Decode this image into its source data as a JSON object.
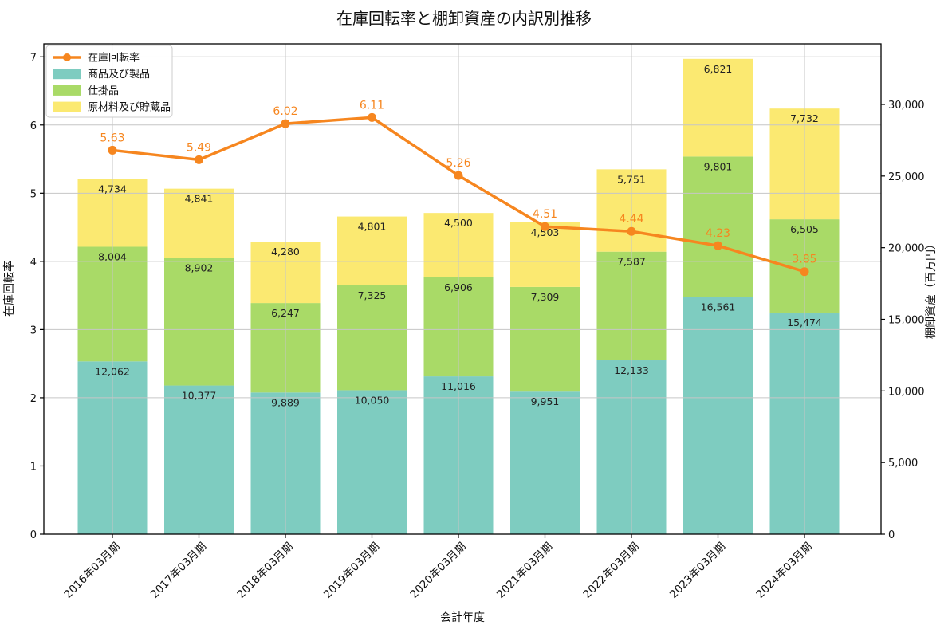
{
  "chart_data": {
    "type": "bar+line",
    "title": "在庫回転率と棚卸資産の内訳別推移",
    "xlabel": "会計年度",
    "ylabel_left": "在庫回転率",
    "ylabel_right": "棚卸資産（百万円）",
    "categories": [
      "2016年03月期",
      "2017年03月期",
      "2018年03月期",
      "2019年03月期",
      "2020年03月期",
      "2021年03月期",
      "2022年03月期",
      "2023年03月期",
      "2024年03月期"
    ],
    "bar_series": [
      {
        "name": "商品及び製品",
        "color": "#7eccc0",
        "values": [
          12062,
          10377,
          9889,
          10050,
          11016,
          9951,
          12133,
          16561,
          15474
        ]
      },
      {
        "name": "仕掛品",
        "color": "#a9da67",
        "values": [
          8004,
          8902,
          6247,
          7325,
          6906,
          7309,
          7587,
          9801,
          6505
        ]
      },
      {
        "name": "原材料及び貯蔵品",
        "color": "#fbe971",
        "values": [
          4734,
          4841,
          4280,
          4801,
          4500,
          4503,
          5751,
          6821,
          7732
        ]
      }
    ],
    "line_series": {
      "name": "在庫回転率",
      "color": "#f6861f",
      "values": [
        5.63,
        5.49,
        6.02,
        6.11,
        5.26,
        4.51,
        4.44,
        4.23,
        3.85
      ]
    },
    "axes": {
      "left": {
        "ticks": [
          0,
          1,
          2,
          3,
          4,
          5,
          6,
          7
        ],
        "max": 7.19
      },
      "right": {
        "ticks": [
          0,
          5000,
          10000,
          15000,
          20000,
          25000,
          30000
        ],
        "max": 34230
      }
    },
    "legend_position": "upper left",
    "grid": true,
    "colors": {
      "grid": "#c6c6c6",
      "spine": "#000000",
      "bar_label_text": "#222222",
      "legend_border": "#cccccc",
      "legend_background": "#ffffff"
    }
  }
}
